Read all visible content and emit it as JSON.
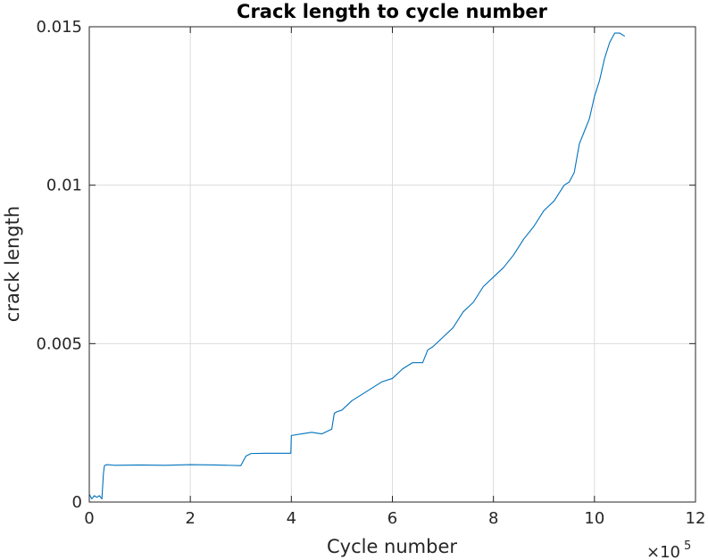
{
  "chart_data": {
    "type": "line",
    "title": "Crack length to cycle number",
    "xlabel": "Cycle number",
    "ylabel": "crack length",
    "xlim": [
      0,
      1200000
    ],
    "ylim": [
      0,
      0.015
    ],
    "x_tick_values": [
      0,
      2,
      4,
      6,
      8,
      10,
      12
    ],
    "x_tick_labels": [
      "0",
      "2",
      "4",
      "6",
      "8",
      "10",
      "12"
    ],
    "x_multiplier": "×10",
    "x_multiplier_exponent": "5",
    "y_tick_values": [
      0,
      0.005,
      0.01,
      0.015
    ],
    "y_tick_labels": [
      "0",
      "0.005",
      "0.01",
      "0.015"
    ],
    "grid": true,
    "line_color": "#0072bd",
    "series": [
      {
        "x": [
          0,
          5000,
          10000,
          15000,
          20000,
          25000,
          28000,
          30000,
          35000,
          50000,
          100000,
          150000,
          200000,
          250000,
          300000,
          310000,
          320000,
          350000,
          380000,
          399000,
          400000,
          420000,
          440000,
          460000,
          480000,
          485000,
          490000,
          500000,
          520000,
          540000,
          560000,
          580000,
          600000,
          620000,
          640000,
          660000,
          670000,
          680000,
          700000,
          720000,
          740000,
          760000,
          780000,
          800000,
          820000,
          840000,
          860000,
          880000,
          900000,
          920000,
          940000,
          950000,
          960000,
          970000,
          980000,
          990000,
          1000000,
          1010000,
          1020000,
          1030000,
          1040000,
          1050000,
          1060000
        ],
        "y": [
          0.00025,
          0.0001,
          0.0002,
          0.00015,
          0.0002,
          0.0001,
          0.0009,
          0.00115,
          0.00118,
          0.00116,
          0.00117,
          0.00116,
          0.00118,
          0.00117,
          0.00115,
          0.00145,
          0.00153,
          0.00154,
          0.00154,
          0.00154,
          0.0021,
          0.00215,
          0.0022,
          0.00215,
          0.0023,
          0.0028,
          0.00285,
          0.0029,
          0.0032,
          0.0034,
          0.0036,
          0.0038,
          0.0039,
          0.0042,
          0.0044,
          0.0044,
          0.0048,
          0.0049,
          0.0052,
          0.0055,
          0.006,
          0.0063,
          0.0068,
          0.0071,
          0.0074,
          0.0078,
          0.0083,
          0.0087,
          0.0092,
          0.0095,
          0.01,
          0.0101,
          0.0104,
          0.0113,
          0.0117,
          0.0121,
          0.0128,
          0.0133,
          0.014,
          0.0145,
          0.0148,
          0.0148,
          0.0147
        ]
      }
    ]
  }
}
